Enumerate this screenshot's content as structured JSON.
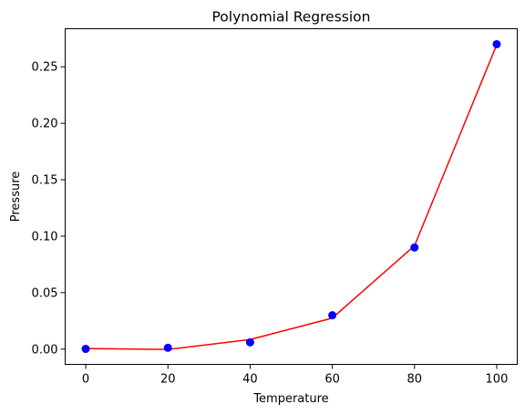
{
  "chart_data": {
    "type": "scatter",
    "title": "Polynomial Regression",
    "xlabel": "Temperature",
    "ylabel": "Pressure",
    "xlim": [
      -5,
      105
    ],
    "ylim": [
      -0.0135,
      0.2837
    ],
    "x_ticks": [
      0,
      20,
      40,
      60,
      80,
      100
    ],
    "y_ticks": [
      0.0,
      0.05,
      0.1,
      0.15,
      0.2,
      0.25
    ],
    "y_tick_labels": [
      "0.00",
      "0.05",
      "0.10",
      "0.15",
      "0.20",
      "0.25"
    ],
    "x_tick_labels": [
      "0",
      "20",
      "40",
      "60",
      "80",
      "100"
    ],
    "grid": false,
    "series": [
      {
        "kind": "scatter",
        "color": "#0000ff",
        "x": [
          0,
          20,
          40,
          60,
          80,
          100
        ],
        "y": [
          0.0002,
          0.0012,
          0.006,
          0.03,
          0.09,
          0.27
        ]
      },
      {
        "kind": "line",
        "color": "#ff0000",
        "x": [
          0,
          20,
          40,
          60,
          80,
          100
        ],
        "y": [
          0.0005,
          -0.0003,
          0.0085,
          0.0275,
          0.0915,
          0.2695
        ]
      }
    ]
  }
}
